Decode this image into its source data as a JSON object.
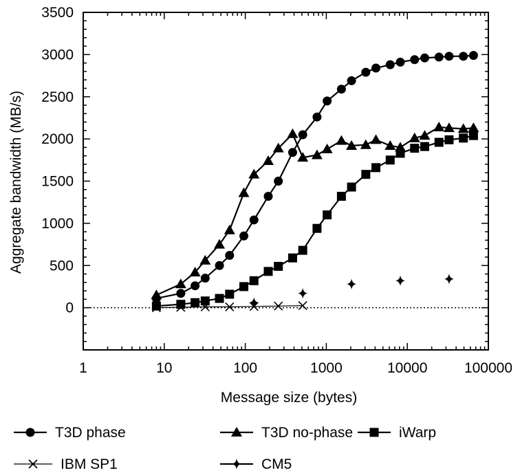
{
  "chart_data": {
    "type": "line",
    "xlabel": "Message size (bytes)",
    "ylabel": "Aggregate bandwidth (MB/s)",
    "xscale": "log",
    "xlim": [
      1,
      100000
    ],
    "ylim": [
      -500,
      3500
    ],
    "x_ticks": [
      1,
      10,
      100,
      1000,
      10000,
      100000
    ],
    "x_tick_labels": [
      "1",
      "10",
      "100",
      "1000",
      "10000",
      "100000"
    ],
    "y_ticks": [
      0,
      500,
      1000,
      1500,
      2000,
      2500,
      3000,
      3500
    ],
    "y_tick_labels": [
      "0",
      "500",
      "1000",
      "1500",
      "2000",
      "2500",
      "3000",
      "3500"
    ],
    "zero_reference_line": "dotted",
    "grid": false,
    "legend_position": "bottom",
    "series": [
      {
        "name": "T3D phase",
        "marker": "circle",
        "line": true,
        "color": "#000000",
        "x": [
          8,
          16,
          24,
          32,
          48,
          64,
          96,
          128,
          192,
          256,
          384,
          512,
          768,
          1024,
          1536,
          2048,
          3072,
          4096,
          6144,
          8192,
          12288,
          16384,
          24576,
          32768,
          49152,
          65536
        ],
        "y": [
          110,
          170,
          260,
          350,
          500,
          620,
          850,
          1040,
          1320,
          1500,
          1840,
          2050,
          2260,
          2450,
          2590,
          2690,
          2790,
          2840,
          2880,
          2910,
          2940,
          2960,
          2970,
          2980,
          2980,
          2990
        ]
      },
      {
        "name": "T3D no-phase",
        "marker": "triangle",
        "line": true,
        "color": "#000000",
        "x": [
          8,
          16,
          24,
          32,
          48,
          64,
          96,
          128,
          192,
          256,
          384,
          512,
          768,
          1024,
          1536,
          2048,
          3072,
          4096,
          6144,
          8192,
          12288,
          16384,
          24576,
          32768,
          49152,
          65536
        ],
        "y": [
          150,
          280,
          420,
          560,
          750,
          920,
          1360,
          1580,
          1740,
          1890,
          2060,
          1780,
          1810,
          1880,
          1980,
          1920,
          1930,
          1990,
          1920,
          1900,
          2010,
          2040,
          2140,
          2130,
          2120,
          2130
        ]
      },
      {
        "name": "iWarp",
        "marker": "square",
        "line": true,
        "color": "#000000",
        "x": [
          8,
          16,
          24,
          32,
          48,
          64,
          96,
          128,
          192,
          256,
          384,
          512,
          768,
          1024,
          1536,
          2048,
          3072,
          4096,
          6144,
          8192,
          12288,
          16384,
          24576,
          32768,
          49152,
          65536
        ],
        "y": [
          20,
          40,
          60,
          80,
          110,
          160,
          250,
          320,
          430,
          490,
          590,
          680,
          940,
          1100,
          1320,
          1430,
          1580,
          1660,
          1750,
          1830,
          1890,
          1910,
          1960,
          1990,
          2010,
          2040
        ]
      },
      {
        "name": "IBM SP1",
        "marker": "x",
        "line": true,
        "color": "#000000",
        "x": [
          8,
          16,
          32,
          64,
          128,
          256,
          512
        ],
        "y": [
          0,
          5,
          10,
          10,
          15,
          20,
          25
        ]
      },
      {
        "name": "CM5",
        "marker": "diamond",
        "line": false,
        "color": "#000000",
        "x": [
          128,
          512,
          2048,
          8192,
          32768
        ],
        "y": [
          60,
          170,
          280,
          320,
          340
        ]
      }
    ]
  }
}
